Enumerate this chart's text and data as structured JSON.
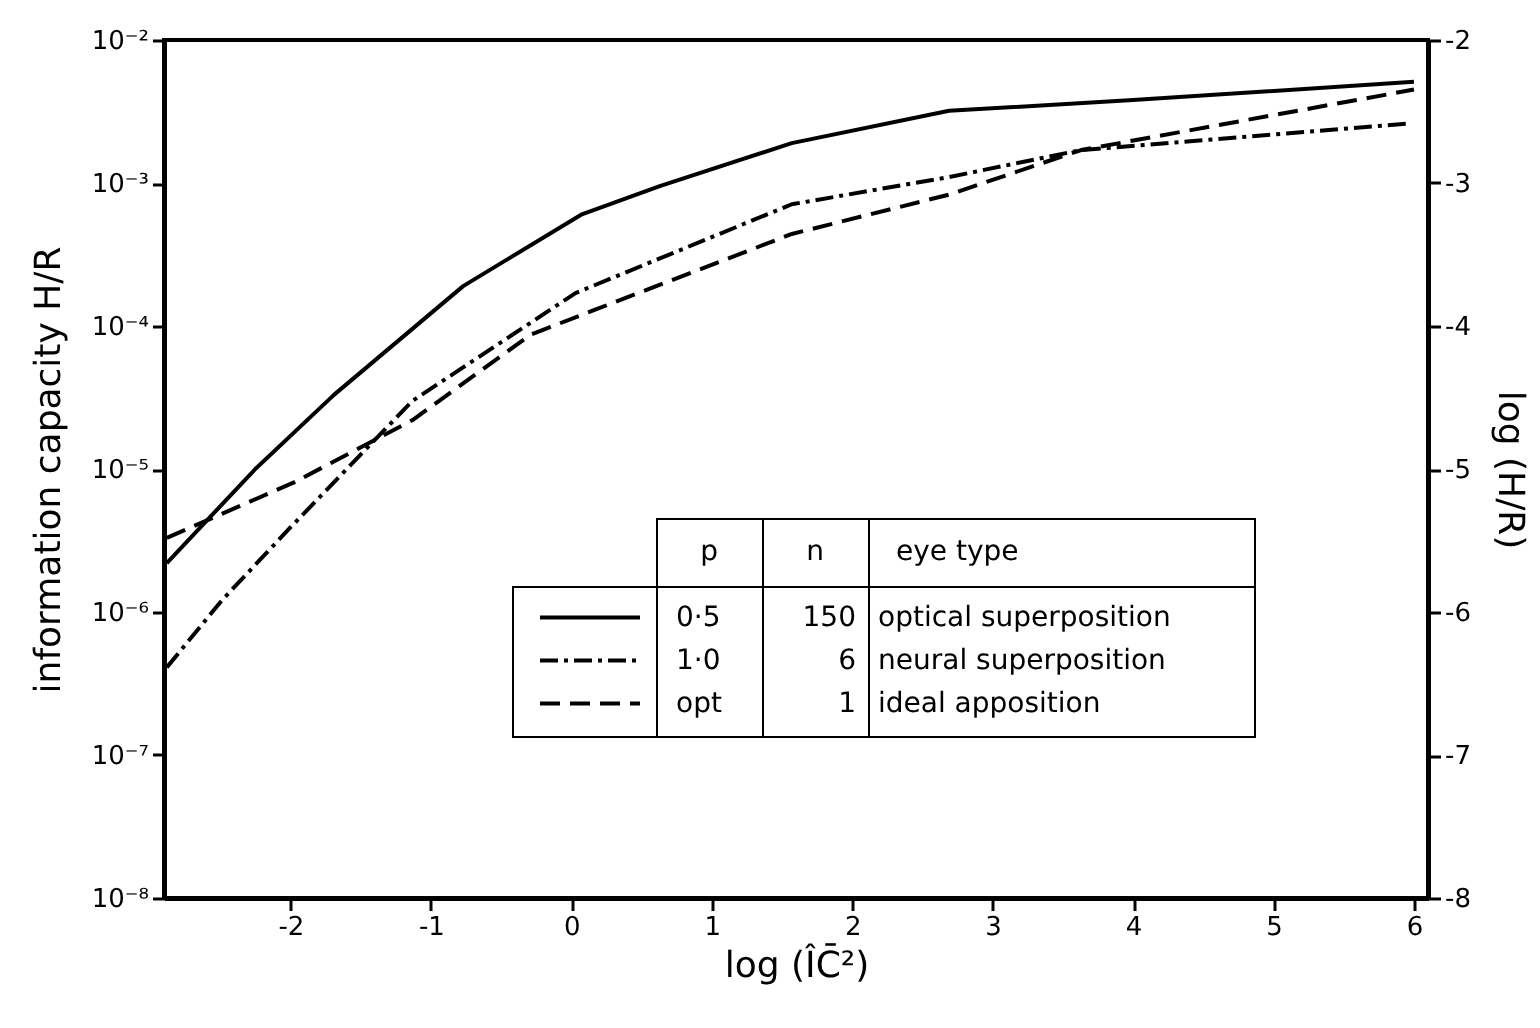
{
  "chart_data": {
    "type": "line",
    "xlabel": "log (ÎC̄²)",
    "ylabel": "information capacity H/R",
    "y2label": "log (H/R)",
    "xlim": [
      -2.9,
      6.1
    ],
    "xticks": [
      -2,
      -1,
      0,
      1,
      2,
      3,
      4,
      5,
      6
    ],
    "log": "y",
    "ylim": [
      1e-08,
      0.01
    ],
    "yticks": [
      {
        "value": 1e-08,
        "label": "10⁻⁸"
      },
      {
        "value": 1e-07,
        "label": "10⁻⁷"
      },
      {
        "value": 1e-06,
        "label": "10⁻⁶"
      },
      {
        "value": 1e-05,
        "label": "10⁻⁵"
      },
      {
        "value": 0.0001,
        "label": "10⁻⁴"
      },
      {
        "value": 0.001,
        "label": "10⁻³"
      },
      {
        "value": 0.01,
        "label": "10⁻²"
      }
    ],
    "y2lim": [
      -8,
      -2
    ],
    "y2ticks": [
      -8,
      -7,
      -6,
      -5,
      -4,
      -3,
      -2
    ],
    "grid": false,
    "legend": "bottom",
    "marker": "none",
    "annotations": [
      "p",
      "n",
      "eye type",
      "150",
      "optical superposition",
      "6",
      "neural superposition",
      "1",
      "ideal apposition"
    ],
    "series": [
      {
        "name": "0·5",
        "color": "#000000",
        "line_style": "solid",
        "x": [
          -2.88,
          -2.25,
          -1.69,
          -0.77,
          0.07,
          0.63,
          1.57,
          2.69,
          4.0,
          6.0
        ],
        "values": [
          2.2e-06,
          1e-05,
          3.3e-05,
          0.00019,
          0.0006,
          0.00095,
          0.0019,
          0.0032,
          0.0038,
          0.0051
        ]
      },
      {
        "name": "1·0",
        "color": "#000000",
        "line_style": "dashdot",
        "x": [
          -2.88,
          -2.49,
          -2.0,
          -1.13,
          0.03,
          1.57,
          2.69,
          3.63,
          5.95
        ],
        "values": [
          4.1e-07,
          1.2e-06,
          3.9e-06,
          3e-05,
          0.00017,
          0.00071,
          0.0011,
          0.0017,
          0.0026
        ]
      },
      {
        "name": "opt",
        "color": "#000000",
        "line_style": "dashed",
        "x": [
          -2.88,
          -1.97,
          -1.13,
          -0.29,
          0.17,
          1.57,
          2.69,
          3.63,
          6.0
        ],
        "values": [
          3.3e-06,
          8.1e-06,
          2.2e-05,
          8.7e-05,
          0.00013,
          0.00044,
          0.00083,
          0.0017,
          0.0045
        ]
      }
    ]
  }
}
